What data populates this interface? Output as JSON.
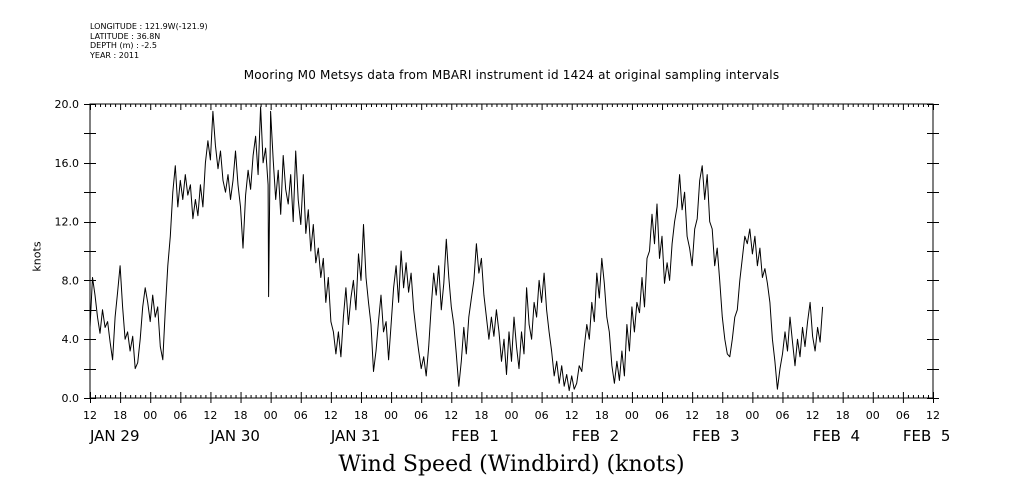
{
  "header": {
    "meta_lines": [
      "LONGITUDE : 121.9W(-121.9)",
      "LATITUDE : 36.8N",
      "DEPTH (m) : -2.5",
      "YEAR : 2011"
    ],
    "title": "Mooring M0 Metsys data from MBARI instrument id 1424 at original sampling intervals"
  },
  "chart_data": {
    "type": "line",
    "title": "Wind Speed (Windbird) (knots)",
    "xlabel": "",
    "ylabel": "knots",
    "ylim": [
      0,
      20
    ],
    "xlim_hours": [
      0,
      168
    ],
    "x_start": "2011-01-29 12:00",
    "yticks": [
      "0.0",
      "4.0",
      "8.0",
      "12.0",
      "16.0",
      "20.0"
    ],
    "hour_tick_labels": [
      "12",
      "18",
      "00",
      "06",
      "12",
      "18",
      "00",
      "06",
      "12",
      "18",
      "00",
      "06",
      "12",
      "18",
      "00",
      "06",
      "12",
      "18",
      "00",
      "06",
      "12",
      "18",
      "00",
      "06",
      "12",
      "18",
      "00",
      "06",
      "12"
    ],
    "day_labels": [
      {
        "text": "JAN 29",
        "hour": 0
      },
      {
        "text": "JAN 30",
        "hour": 24
      },
      {
        "text": "JAN 31",
        "hour": 48
      },
      {
        "text": "FEB  1",
        "hour": 72
      },
      {
        "text": "FEB  2",
        "hour": 96
      },
      {
        "text": "FEB  3",
        "hour": 120
      },
      {
        "text": "FEB  4",
        "hour": 144
      },
      {
        "text": "FEB  5",
        "hour": 162
      }
    ],
    "series": [
      {
        "points": [
          [
            0,
            4.8
          ],
          [
            0.5,
            8.2
          ],
          [
            1,
            7.0
          ],
          [
            1.5,
            5.5
          ],
          [
            2,
            4.4
          ],
          [
            2.5,
            6.0
          ],
          [
            3,
            4.8
          ],
          [
            3.5,
            5.2
          ],
          [
            4,
            3.8
          ],
          [
            4.5,
            2.6
          ],
          [
            5,
            5.5
          ],
          [
            5.5,
            7.2
          ],
          [
            6,
            9.0
          ],
          [
            6.5,
            6.2
          ],
          [
            7,
            4.0
          ],
          [
            7.5,
            4.5
          ],
          [
            8,
            3.2
          ],
          [
            8.5,
            4.2
          ],
          [
            9,
            2.0
          ],
          [
            9.5,
            2.4
          ],
          [
            10,
            4.0
          ],
          [
            10.5,
            6.2
          ],
          [
            11,
            7.5
          ],
          [
            11.5,
            6.5
          ],
          [
            12,
            5.2
          ],
          [
            12.5,
            7.0
          ],
          [
            13,
            5.5
          ],
          [
            13.5,
            6.2
          ],
          [
            14,
            3.5
          ],
          [
            14.5,
            2.6
          ],
          [
            15,
            6.0
          ],
          [
            15.5,
            9.0
          ],
          [
            16,
            11.0
          ],
          [
            16.5,
            14.0
          ],
          [
            17,
            15.8
          ],
          [
            17.5,
            13.0
          ],
          [
            18,
            14.8
          ],
          [
            18.5,
            13.5
          ],
          [
            19,
            15.2
          ],
          [
            19.5,
            13.8
          ],
          [
            20,
            14.5
          ],
          [
            20.5,
            12.2
          ],
          [
            21,
            13.5
          ],
          [
            21.5,
            12.4
          ],
          [
            22,
            14.5
          ],
          [
            22.5,
            13.0
          ],
          [
            23,
            16.0
          ],
          [
            23.5,
            17.5
          ],
          [
            24,
            16.2
          ],
          [
            24.5,
            19.5
          ],
          [
            25,
            17.2
          ],
          [
            25.5,
            15.6
          ],
          [
            26,
            16.8
          ],
          [
            26.5,
            14.8
          ],
          [
            27,
            14.0
          ],
          [
            27.5,
            15.2
          ],
          [
            28,
            13.5
          ],
          [
            28.5,
            14.8
          ],
          [
            29,
            16.8
          ],
          [
            29.5,
            14.5
          ],
          [
            30,
            13.0
          ],
          [
            30.5,
            10.2
          ],
          [
            31,
            13.8
          ],
          [
            31.5,
            15.5
          ],
          [
            32,
            14.2
          ],
          [
            32.5,
            16.5
          ],
          [
            33,
            17.8
          ],
          [
            33.5,
            15.2
          ],
          [
            34,
            19.8
          ],
          [
            34.5,
            16.0
          ],
          [
            35,
            17.0
          ],
          [
            35.5,
            14.5
          ],
          [
            35.6,
            6.9
          ],
          [
            36,
            19.5
          ],
          [
            36.5,
            16.2
          ],
          [
            37,
            13.5
          ],
          [
            37.5,
            15.5
          ],
          [
            38,
            12.5
          ],
          [
            38.5,
            16.5
          ],
          [
            39,
            14.2
          ],
          [
            39.5,
            13.2
          ],
          [
            40,
            15.2
          ],
          [
            40.5,
            12.0
          ],
          [
            41,
            16.8
          ],
          [
            41.5,
            13.5
          ],
          [
            42,
            11.8
          ],
          [
            42.5,
            15.2
          ],
          [
            43,
            11.2
          ],
          [
            43.5,
            12.8
          ],
          [
            44,
            10.0
          ],
          [
            44.5,
            11.8
          ],
          [
            45,
            9.2
          ],
          [
            45.5,
            10.2
          ],
          [
            46,
            8.2
          ],
          [
            46.5,
            9.5
          ],
          [
            47,
            6.5
          ],
          [
            47.5,
            8.2
          ],
          [
            48,
            5.2
          ],
          [
            48.5,
            4.5
          ],
          [
            49,
            3.0
          ],
          [
            49.5,
            4.5
          ],
          [
            50,
            2.8
          ],
          [
            50.5,
            5.5
          ],
          [
            51,
            7.5
          ],
          [
            51.5,
            5.0
          ],
          [
            52,
            6.8
          ],
          [
            52.5,
            8.0
          ],
          [
            53,
            6.0
          ],
          [
            53.5,
            9.8
          ],
          [
            54,
            8.0
          ],
          [
            54.5,
            11.8
          ],
          [
            55,
            8.2
          ],
          [
            55.5,
            6.5
          ],
          [
            56,
            5.0
          ],
          [
            56.5,
            1.8
          ],
          [
            57,
            3.2
          ],
          [
            57.5,
            5.2
          ],
          [
            58,
            7.0
          ],
          [
            58.5,
            4.5
          ],
          [
            59,
            5.2
          ],
          [
            59.5,
            2.6
          ],
          [
            60,
            5.0
          ],
          [
            60.5,
            7.5
          ],
          [
            61,
            9.0
          ],
          [
            61.5,
            6.5
          ],
          [
            62,
            10.0
          ],
          [
            62.5,
            7.5
          ],
          [
            63,
            9.2
          ],
          [
            63.5,
            7.2
          ],
          [
            64,
            8.5
          ],
          [
            64.5,
            6.0
          ],
          [
            65,
            4.5
          ],
          [
            65.5,
            3.2
          ],
          [
            66,
            2.0
          ],
          [
            66.5,
            2.8
          ],
          [
            67,
            1.5
          ],
          [
            67.5,
            3.5
          ],
          [
            68,
            6.2
          ],
          [
            68.5,
            8.5
          ],
          [
            69,
            7.0
          ],
          [
            69.5,
            9.0
          ],
          [
            70,
            6.0
          ],
          [
            70.5,
            7.8
          ],
          [
            71,
            10.8
          ],
          [
            71.5,
            8.2
          ],
          [
            72,
            6.2
          ],
          [
            72.5,
            5.0
          ],
          [
            73,
            3.0
          ],
          [
            73.5,
            0.8
          ],
          [
            74,
            2.5
          ],
          [
            74.5,
            4.8
          ],
          [
            75,
            3.0
          ],
          [
            75.5,
            5.5
          ],
          [
            76,
            6.8
          ],
          [
            76.5,
            8.0
          ],
          [
            77,
            10.5
          ],
          [
            77.5,
            8.5
          ],
          [
            78,
            9.5
          ],
          [
            78.5,
            7.0
          ],
          [
            79,
            5.5
          ],
          [
            79.5,
            4.0
          ],
          [
            80,
            5.5
          ],
          [
            80.5,
            4.2
          ],
          [
            81,
            6.0
          ],
          [
            81.5,
            4.5
          ],
          [
            82,
            2.5
          ],
          [
            82.5,
            4.0
          ],
          [
            83,
            1.6
          ],
          [
            83.5,
            4.5
          ],
          [
            84,
            2.5
          ],
          [
            84.5,
            5.5
          ],
          [
            85,
            3.5
          ],
          [
            85.5,
            2.0
          ],
          [
            86,
            4.5
          ],
          [
            86.5,
            3.0
          ],
          [
            87,
            7.5
          ],
          [
            87.5,
            5.0
          ],
          [
            88,
            4.0
          ],
          [
            88.5,
            6.5
          ],
          [
            89,
            5.5
          ],
          [
            89.5,
            8.0
          ],
          [
            90,
            6.5
          ],
          [
            90.5,
            8.5
          ],
          [
            91,
            6.0
          ],
          [
            91.5,
            4.5
          ],
          [
            92,
            3.2
          ],
          [
            92.5,
            1.5
          ],
          [
            93,
            2.5
          ],
          [
            93.5,
            1.0
          ],
          [
            94,
            2.2
          ],
          [
            94.5,
            0.8
          ],
          [
            95,
            1.6
          ],
          [
            95.5,
            0.5
          ],
          [
            96,
            1.5
          ],
          [
            96.5,
            0.6
          ],
          [
            97,
            1.0
          ],
          [
            97.5,
            2.2
          ],
          [
            98,
            1.8
          ],
          [
            98.5,
            3.5
          ],
          [
            99,
            5.0
          ],
          [
            99.5,
            4.0
          ],
          [
            100,
            6.5
          ],
          [
            100.5,
            5.2
          ],
          [
            101,
            8.5
          ],
          [
            101.5,
            6.8
          ],
          [
            102,
            9.5
          ],
          [
            102.5,
            7.8
          ],
          [
            103,
            5.5
          ],
          [
            103.5,
            4.5
          ],
          [
            104,
            2.2
          ],
          [
            104.5,
            1.0
          ],
          [
            105,
            2.5
          ],
          [
            105.5,
            1.2
          ],
          [
            106,
            3.2
          ],
          [
            106.5,
            1.5
          ],
          [
            107,
            5.0
          ],
          [
            107.5,
            3.2
          ],
          [
            108,
            6.2
          ],
          [
            108.5,
            4.5
          ],
          [
            109,
            6.5
          ],
          [
            109.5,
            5.8
          ],
          [
            110,
            8.2
          ],
          [
            110.5,
            6.2
          ],
          [
            111,
            9.5
          ],
          [
            111.5,
            10.0
          ],
          [
            112,
            12.5
          ],
          [
            112.5,
            10.5
          ],
          [
            113,
            13.2
          ],
          [
            113.5,
            9.5
          ],
          [
            114,
            11.0
          ],
          [
            114.5,
            7.8
          ],
          [
            115,
            9.2
          ],
          [
            115.5,
            8.0
          ],
          [
            116,
            10.5
          ],
          [
            116.5,
            12.0
          ],
          [
            117,
            13.0
          ],
          [
            117.5,
            15.2
          ],
          [
            118,
            12.8
          ],
          [
            118.5,
            14.0
          ],
          [
            119,
            11.0
          ],
          [
            119.5,
            10.2
          ],
          [
            120,
            9.0
          ],
          [
            120.5,
            11.5
          ],
          [
            121,
            12.2
          ],
          [
            121.5,
            14.8
          ],
          [
            122,
            15.8
          ],
          [
            122.5,
            13.5
          ],
          [
            123,
            15.2
          ],
          [
            123.5,
            12.0
          ],
          [
            124,
            11.5
          ],
          [
            124.5,
            9.0
          ],
          [
            125,
            10.2
          ],
          [
            125.5,
            8.0
          ],
          [
            126,
            5.5
          ],
          [
            126.5,
            4.0
          ],
          [
            127,
            3.0
          ],
          [
            127.5,
            2.8
          ],
          [
            128,
            4.0
          ],
          [
            128.5,
            5.5
          ],
          [
            129,
            6.0
          ],
          [
            129.5,
            8.0
          ],
          [
            130,
            9.5
          ],
          [
            130.5,
            11.0
          ],
          [
            131,
            10.5
          ],
          [
            131.5,
            11.5
          ],
          [
            132,
            9.8
          ],
          [
            132.5,
            11.0
          ],
          [
            133,
            9.0
          ],
          [
            133.5,
            10.2
          ],
          [
            134,
            8.2
          ],
          [
            134.5,
            8.8
          ],
          [
            135,
            7.8
          ],
          [
            135.5,
            6.5
          ],
          [
            136,
            4.0
          ],
          [
            136.5,
            2.5
          ],
          [
            137,
            0.6
          ],
          [
            137.5,
            2.0
          ],
          [
            138,
            3.0
          ],
          [
            138.5,
            4.5
          ],
          [
            139,
            3.2
          ],
          [
            139.5,
            5.5
          ],
          [
            140,
            3.8
          ],
          [
            140.5,
            2.2
          ],
          [
            141,
            4.0
          ],
          [
            141.5,
            2.8
          ],
          [
            142,
            4.8
          ],
          [
            142.5,
            3.5
          ],
          [
            143,
            5.2
          ],
          [
            143.5,
            6.5
          ],
          [
            144,
            4.2
          ],
          [
            144.5,
            3.2
          ],
          [
            145,
            4.8
          ],
          [
            145.5,
            3.8
          ],
          [
            146,
            6.2
          ]
        ]
      }
    ]
  }
}
